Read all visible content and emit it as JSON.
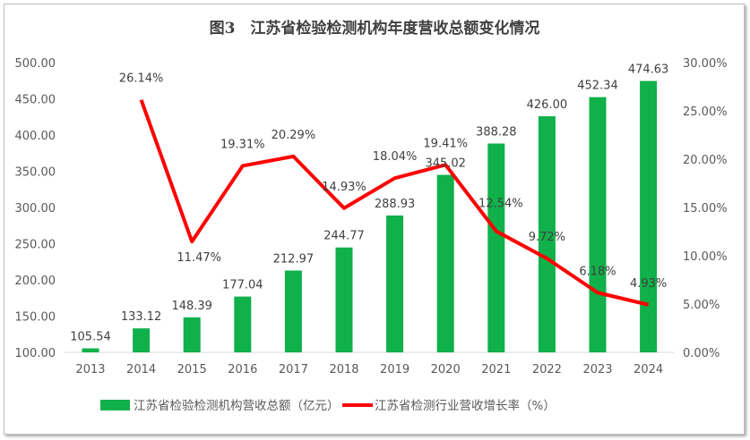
{
  "chart_data": {
    "type": "bar+line",
    "title": "图3　江苏省检验检测机构年度营收总额变化情况",
    "categories": [
      "2013",
      "2014",
      "2015",
      "2016",
      "2017",
      "2018",
      "2019",
      "2020",
      "2021",
      "2022",
      "2023",
      "2024"
    ],
    "series": [
      {
        "name": "江苏省检验检测机构营收总额（亿元）",
        "type": "bar",
        "axis": "left",
        "color": "#10b04a",
        "values": [
          105.54,
          133.12,
          148.39,
          177.04,
          212.97,
          244.77,
          288.93,
          345.02,
          388.28,
          426.0,
          452.34,
          474.63
        ],
        "labels": [
          "105.54",
          "133.12",
          "148.39",
          "177.04",
          "212.97",
          "244.77",
          "288.93",
          "345.02",
          "388.28",
          "426.00",
          "452.34",
          "474.63"
        ]
      },
      {
        "name": "江苏省检测行业营收增长率（%）",
        "type": "line",
        "axis": "right",
        "color": "#ff0000",
        "values": [
          null,
          26.14,
          11.47,
          19.31,
          20.29,
          14.93,
          18.04,
          19.41,
          12.54,
          9.72,
          6.18,
          4.93
        ],
        "labels": [
          "",
          "26.14%",
          "11.47%",
          "19.31%",
          "20.29%",
          "14.93%",
          "18.04%",
          "19.41%",
          "12.54%",
          "9.72%",
          "6.18%",
          "4.93%"
        ]
      }
    ],
    "y_left": {
      "range": [
        100,
        500
      ],
      "ticks": [
        "100.00",
        "150.00",
        "200.00",
        "250.00",
        "300.00",
        "350.00",
        "400.00",
        "450.00",
        "500.00"
      ]
    },
    "y_right": {
      "range": [
        0,
        30
      ],
      "ticks": [
        "0.00%",
        "5.00%",
        "10.00%",
        "15.00%",
        "20.00%",
        "25.00%",
        "30.00%"
      ]
    },
    "grid": false,
    "legend": "bottom"
  }
}
